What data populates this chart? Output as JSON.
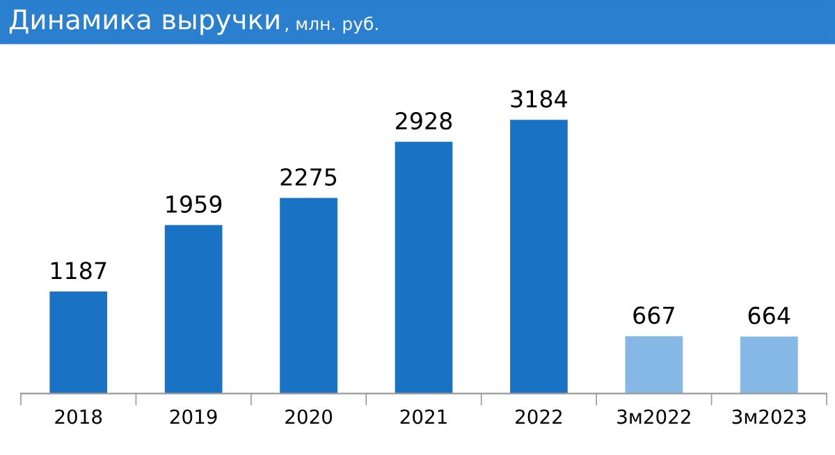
{
  "chart_data": {
    "type": "bar",
    "title": "Динамика выручки",
    "subtitle": ", млн. руб.",
    "categories": [
      "2018",
      "2019",
      "2020",
      "2021",
      "2022",
      "3м2022",
      "3м2023"
    ],
    "values": [
      1187,
      1959,
      2275,
      2928,
      3184,
      667,
      664
    ],
    "colors": [
      "#1a72c4",
      "#1a72c4",
      "#1a72c4",
      "#1a72c4",
      "#1a72c4",
      "#85b8e4",
      "#85b8e4"
    ],
    "data_labels": true,
    "grid": false,
    "legend": false
  }
}
